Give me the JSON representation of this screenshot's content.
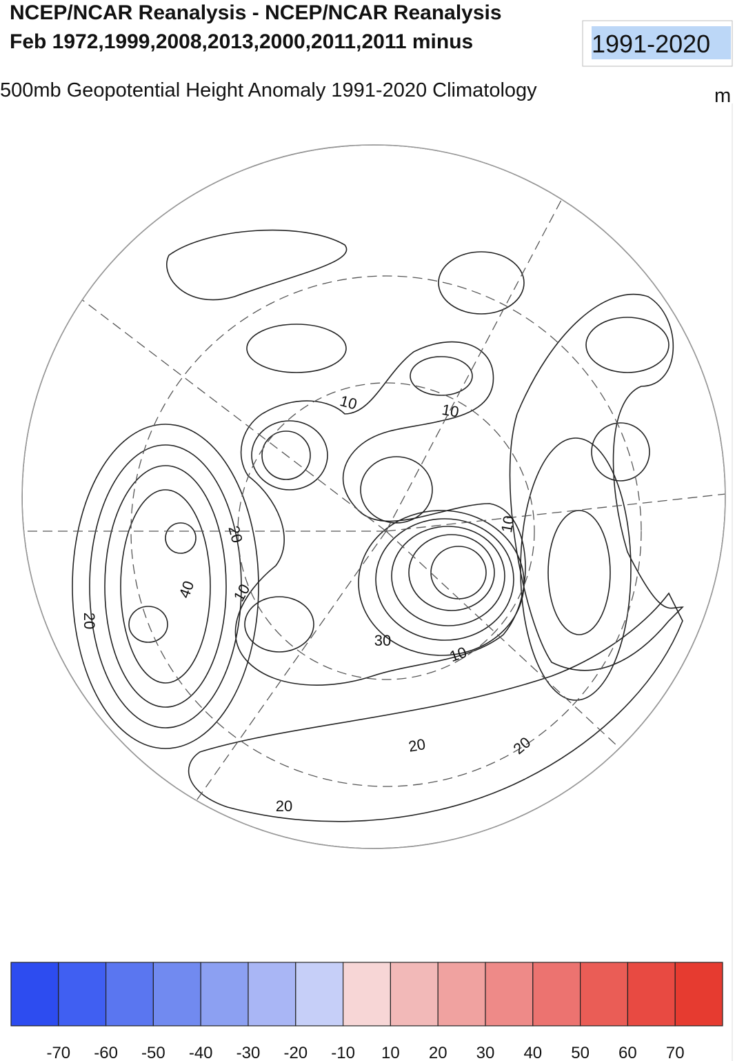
{
  "header": {
    "title_line1": "NCEP/NCAR Reanalysis - NCEP/NCAR Reanalysis",
    "title_line2": "Feb 1972,1999,2008,2013,2000,2011,2011 minus",
    "title_highlight": "1991-2020"
  },
  "subtitle": "500mb Geopotential Height Anomaly  1991-2020 Climatology",
  "units": "m",
  "map": {
    "contour_labels": [
      10,
      10,
      20,
      40,
      20,
      10,
      30,
      10,
      20,
      20,
      20,
      10
    ]
  },
  "colorbar": {
    "colors": [
      "#2d4cf0",
      "#405ff2",
      "#5a76f0",
      "#718af0",
      "#8ca0f2",
      "#a9b6f5",
      "#c6cff8",
      "#f7d6d6",
      "#f2b9b8",
      "#f0a2a0",
      "#ee8a88",
      "#ec7370",
      "#ea5d56",
      "#e84a42",
      "#e63b30"
    ],
    "labels": [
      -70,
      -60,
      -50,
      -40,
      -30,
      -20,
      -10,
      10,
      20,
      30,
      40,
      50,
      60,
      70
    ]
  }
}
